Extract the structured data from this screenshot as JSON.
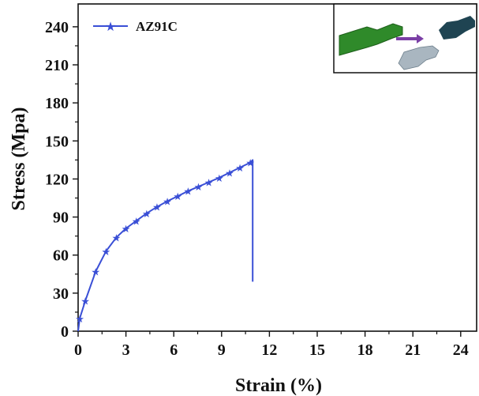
{
  "chart_data": {
    "type": "line",
    "xlabel": "Strain (%)",
    "ylabel": "Stress (Mpa)",
    "xlim": [
      0,
      25
    ],
    "ylim": [
      0,
      258
    ],
    "x_ticks": [
      0,
      3,
      6,
      9,
      12,
      15,
      18,
      21,
      24
    ],
    "y_ticks": [
      0,
      30,
      60,
      90,
      120,
      150,
      180,
      210,
      240
    ],
    "legend_position": "top-left",
    "series": [
      {
        "name": "AZ91C",
        "color": "#3a4fd6",
        "marker": "star",
        "x": [
          0,
          0.1,
          0.45,
          1.1,
          1.75,
          2.4,
          3.0,
          3.65,
          4.3,
          4.95,
          5.6,
          6.25,
          6.9,
          7.55,
          8.2,
          8.85,
          9.5,
          10.15,
          10.8,
          10.95,
          10.95
        ],
        "y": [
          0,
          10,
          24,
          47,
          63,
          74,
          81,
          87,
          93,
          98,
          102.5,
          106.5,
          110.5,
          114,
          117.5,
          121,
          125,
          129,
          133,
          135,
          39
        ]
      }
    ],
    "inset": {
      "description_icon": "specimen-fracture-illustration"
    }
  }
}
